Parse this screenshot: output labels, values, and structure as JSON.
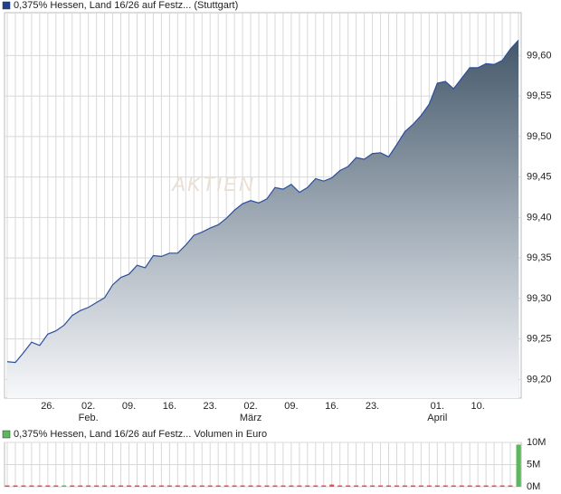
{
  "chart_data": [
    {
      "type": "area",
      "legend": "0,375% Hessen, Land 16/26 auf Festz... (Stuttgart)",
      "legend_color": "#1f3f8f",
      "watermark": "AKTIEN",
      "color": "#2b4f9e",
      "categories": [
        null,
        null,
        null,
        null,
        null,
        "26.",
        null,
        null,
        null,
        null,
        "02.",
        null,
        null,
        null,
        null,
        "09.",
        null,
        null,
        null,
        null,
        "16.",
        null,
        null,
        null,
        null,
        "23.",
        null,
        null,
        null,
        null,
        "02.",
        null,
        null,
        null,
        null,
        "09.",
        null,
        null,
        null,
        null,
        "16.",
        null,
        null,
        null,
        null,
        "23.",
        null,
        null,
        null,
        null,
        null,
        null,
        null,
        "01.",
        null,
        null,
        null,
        null,
        "10.",
        null,
        null,
        null,
        null,
        null
      ],
      "category_months": [
        null,
        null,
        null,
        null,
        null,
        null,
        null,
        null,
        null,
        null,
        "Feb.",
        null,
        null,
        null,
        null,
        null,
        null,
        null,
        null,
        null,
        null,
        null,
        null,
        null,
        null,
        null,
        null,
        null,
        null,
        null,
        "März",
        null,
        null,
        null,
        null,
        null,
        null,
        null,
        null,
        null,
        null,
        null,
        null,
        null,
        null,
        null,
        null,
        null,
        null,
        null,
        null,
        null,
        null,
        "April",
        null,
        null,
        null,
        null,
        null,
        null,
        null,
        null,
        null,
        null
      ],
      "values": [
        99.222,
        99.221,
        99.233,
        99.246,
        99.242,
        99.256,
        99.26,
        99.267,
        99.279,
        99.285,
        99.289,
        99.295,
        99.301,
        99.317,
        99.326,
        99.33,
        99.341,
        99.338,
        99.353,
        99.352,
        99.356,
        99.356,
        99.366,
        99.378,
        99.382,
        99.387,
        99.391,
        99.399,
        99.409,
        99.417,
        99.421,
        99.418,
        99.423,
        99.437,
        99.435,
        99.441,
        99.431,
        99.437,
        99.448,
        99.445,
        99.449,
        99.458,
        99.463,
        99.474,
        99.472,
        99.479,
        99.48,
        99.475,
        99.49,
        99.506,
        99.515,
        99.526,
        99.54,
        99.566,
        99.568,
        99.559,
        99.572,
        99.585,
        99.585,
        99.59,
        99.589,
        99.594,
        99.608,
        99.619
      ],
      "ylim": [
        99.177,
        99.653
      ],
      "yticks": [
        {
          "value": 99.2,
          "label": "99,20"
        },
        {
          "value": 99.25,
          "label": "99,25"
        },
        {
          "value": 99.3,
          "label": "99,30"
        },
        {
          "value": 99.35,
          "label": "99,35"
        },
        {
          "value": 99.4,
          "label": "99,40"
        },
        {
          "value": 99.45,
          "label": "99,45"
        },
        {
          "value": 99.5,
          "label": "99,50"
        },
        {
          "value": 99.55,
          "label": "99,55"
        },
        {
          "value": 99.6,
          "label": "99,60"
        }
      ],
      "grid": true
    },
    {
      "type": "bar",
      "legend": "0,375% Hessen, Land 16/26 auf Festz... Volumen in Euro",
      "legend_color": "#5cb85c",
      "values": [
        0,
        0,
        0,
        150000,
        0,
        0,
        0,
        200000,
        100000,
        0,
        0,
        0,
        0,
        100000,
        0,
        0,
        0,
        150000,
        0,
        0,
        0,
        0,
        100000,
        0,
        0,
        0,
        100000,
        0,
        0,
        150000,
        0,
        0,
        0,
        0,
        250000,
        0,
        0,
        100000,
        0,
        0,
        500000,
        0,
        0,
        0,
        150000,
        0,
        0,
        0,
        100000,
        0,
        0,
        150000,
        0,
        0,
        0,
        100000,
        0,
        0,
        150000,
        0,
        0,
        100000,
        0,
        9500000
      ],
      "colors": [
        "#e05050",
        "#e05050",
        "#e05050",
        "#e05050",
        "#e05050",
        "#e05050",
        "#e05050",
        "#5cb85c",
        "#e05050",
        "#e05050",
        "#e05050",
        "#e05050",
        "#e05050",
        "#e05050",
        "#e05050",
        "#e05050",
        "#e05050",
        "#e05050",
        "#e05050",
        "#e05050",
        "#e05050",
        "#e05050",
        "#e05050",
        "#e05050",
        "#e05050",
        "#e05050",
        "#e05050",
        "#e05050",
        "#e05050",
        "#e05050",
        "#e05050",
        "#e05050",
        "#e05050",
        "#e05050",
        "#e05050",
        "#e05050",
        "#e05050",
        "#e05050",
        "#e05050",
        "#e05050",
        "#e05050",
        "#e05050",
        "#e05050",
        "#e05050",
        "#e05050",
        "#e05050",
        "#e05050",
        "#e05050",
        "#e05050",
        "#e05050",
        "#e05050",
        "#e05050",
        "#e05050",
        "#e05050",
        "#e05050",
        "#e05050",
        "#e05050",
        "#e05050",
        "#e05050",
        "#e05050",
        "#e05050",
        "#e05050",
        "#e05050",
        "#5cb85c"
      ],
      "ylim": [
        0,
        10000000
      ],
      "yticks": [
        {
          "value": 0,
          "label": "0M"
        },
        {
          "value": 5000000,
          "label": "5M"
        },
        {
          "value": 10000000,
          "label": "10M"
        }
      ],
      "grid": true
    }
  ]
}
